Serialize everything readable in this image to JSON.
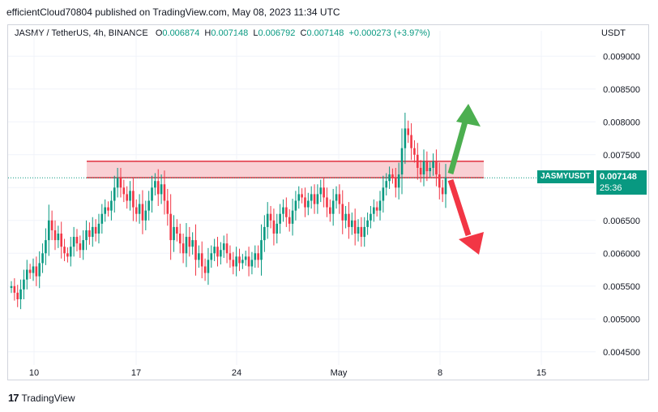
{
  "header": {
    "publisher": "efficientCloud70804 published on TradingView.com, May 08, 2023 11:34 UTC"
  },
  "legend": {
    "symbol": "JASMY / TetherUS, 4h, BINANCE",
    "o_label": "O",
    "o": "0.006874",
    "h_label": "H",
    "h": "0.007148",
    "l_label": "L",
    "l": "0.006792",
    "c_label": "C",
    "c": "0.007148",
    "change": "+0.000273 (+3.97%)"
  },
  "currency": "USDT",
  "price_tag": {
    "symbol": "JASMYUSDT",
    "price": "0.007148",
    "countdown": "25:36"
  },
  "footer": {
    "brand": "TradingView",
    "logo_text": "17"
  },
  "colors": {
    "up": "#089981",
    "down": "#f23645",
    "zone_fill": "#f9d0d4",
    "zone_line": "#e0303f",
    "arrow_up": "#4caf50",
    "arrow_down": "#f23645",
    "grid": "#f0f3fa"
  },
  "chart_data": {
    "type": "candlestick",
    "title": "",
    "y_axis": {
      "min": 0.0043,
      "max": 0.0093,
      "ticks": [
        "0.009000",
        "0.008500",
        "0.008000",
        "0.007500",
        "0.007000",
        "0.006500",
        "0.006000",
        "0.005500",
        "0.005000",
        "0.004500"
      ]
    },
    "x_axis": {
      "ticks": [
        "10",
        "17",
        "24",
        "May",
        "8",
        "15"
      ]
    },
    "resistance_zone": {
      "low": 0.00715,
      "high": 0.0074
    },
    "current_price": 0.007148,
    "close_path": [
      0.0055,
      0.0054,
      0.0053,
      0.00545,
      0.0056,
      0.00575,
      0.0057,
      0.0058,
      0.00565,
      0.00585,
      0.006,
      0.0062,
      0.0065,
      0.00635,
      0.0062,
      0.0063,
      0.0061,
      0.006,
      0.00595,
      0.0061,
      0.00625,
      0.00615,
      0.00605,
      0.0062,
      0.00635,
      0.00625,
      0.0064,
      0.0063,
      0.00645,
      0.0066,
      0.0067,
      0.00665,
      0.0068,
      0.007,
      0.00715,
      0.007,
      0.0069,
      0.0068,
      0.00695,
      0.0067,
      0.0066,
      0.00675,
      0.0065,
      0.00665,
      0.0068,
      0.007,
      0.0071,
      0.0069,
      0.00705,
      0.0068,
      0.0066,
      0.0062,
      0.0064,
      0.0063,
      0.00615,
      0.006,
      0.00625,
      0.0061,
      0.0062,
      0.0059,
      0.006,
      0.0058,
      0.0057,
      0.0059,
      0.006,
      0.0061,
      0.00595,
      0.00605,
      0.00615,
      0.006,
      0.0059,
      0.0058,
      0.00595,
      0.00585,
      0.0059,
      0.00595,
      0.0058,
      0.0059,
      0.006,
      0.0059,
      0.0062,
      0.0064,
      0.0066,
      0.0065,
      0.0063,
      0.00645,
      0.0066,
      0.0067,
      0.00655,
      0.00645,
      0.00665,
      0.0068,
      0.0069,
      0.00685,
      0.0067,
      0.0068,
      0.0069,
      0.00675,
      0.0069,
      0.007,
      0.00685,
      0.0067,
      0.0066,
      0.0068,
      0.0069,
      0.00675,
      0.0065,
      0.0066,
      0.0064,
      0.0065,
      0.0063,
      0.0064,
      0.00625,
      0.0064,
      0.0065,
      0.0066,
      0.0067,
      0.00665,
      0.0068,
      0.007,
      0.0071,
      0.0072,
      0.00715,
      0.007,
      0.0072,
      0.0076,
      0.0079,
      0.0078,
      0.0076,
      0.0075,
      0.0073,
      0.0072,
      0.0074,
      0.00725,
      0.0073,
      0.0074,
      0.0072,
      0.007,
      0.0069,
      0.00715
    ]
  }
}
